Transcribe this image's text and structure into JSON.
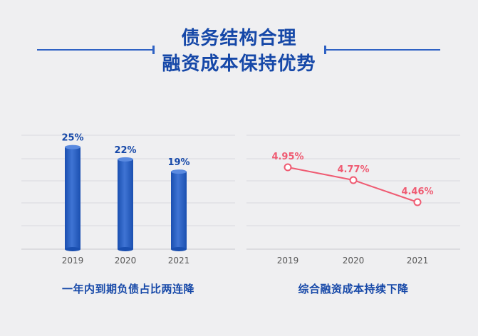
{
  "header": {
    "title_line1": "债务结构合理",
    "title_line2": "融资成本保持优势"
  },
  "colors": {
    "bar": "#1a4fb0",
    "bar_highlight": "#3f74d4",
    "line": "#ef5b72",
    "title": "#1648a8"
  },
  "chart_data": [
    {
      "type": "bar",
      "title": "一年内到期负债占比两连降",
      "categories": [
        "2019",
        "2020",
        "2021"
      ],
      "values": [
        25,
        22,
        19
      ],
      "value_labels": [
        "25%",
        "22%",
        "19%"
      ],
      "unit": "%",
      "ylim": [
        0,
        30
      ],
      "grid": true
    },
    {
      "type": "line",
      "title": "综合融资成本持续下降",
      "categories": [
        "2019",
        "2020",
        "2021"
      ],
      "values": [
        4.95,
        4.77,
        4.46
      ],
      "value_labels": [
        "4.95%",
        "4.77%",
        "4.46%"
      ],
      "unit": "%",
      "ylim": [
        3.8,
        5.4
      ],
      "grid": true
    }
  ]
}
